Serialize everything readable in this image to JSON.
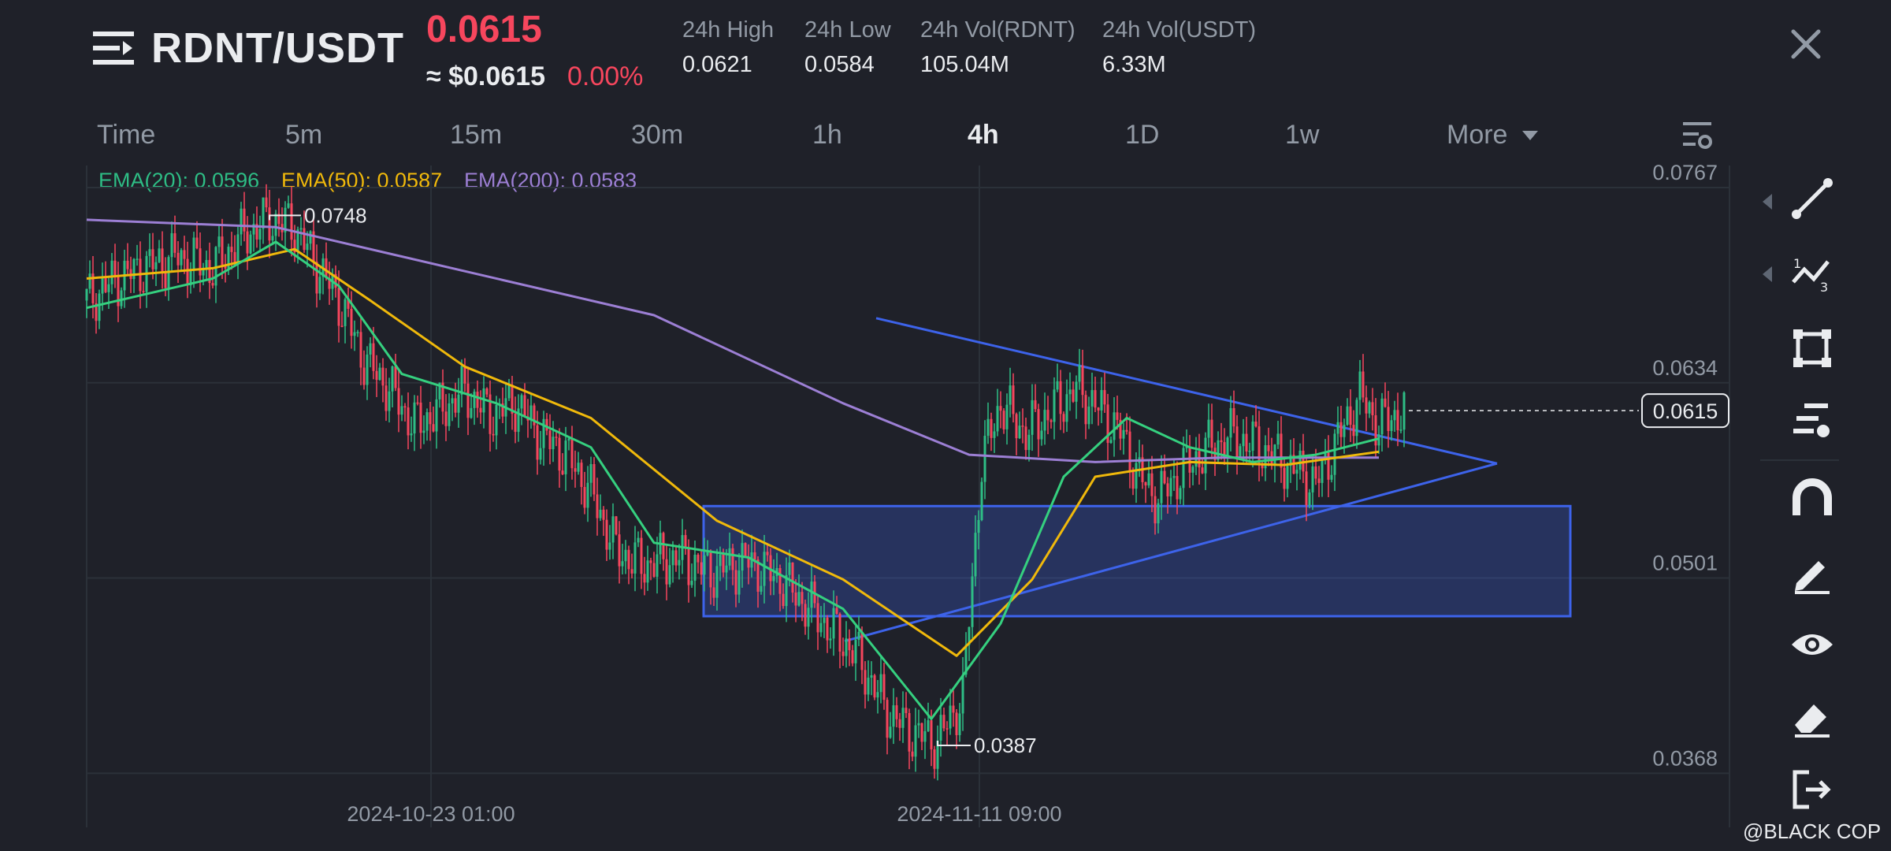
{
  "header": {
    "pair": "RDNT/USDT",
    "last_price": "0.0615",
    "usd_price": "≈ $0.0615",
    "change": "0.00%",
    "stats": [
      {
        "label": "24h High",
        "value": "0.0621"
      },
      {
        "label": "24h Low",
        "value": "0.0584"
      },
      {
        "label": "24h Vol(RDNT)",
        "value": "105.04M"
      },
      {
        "label": "24h Vol(USDT)",
        "value": "6.33M"
      }
    ]
  },
  "timeframes": [
    "Time",
    "5m",
    "15m",
    "30m",
    "1h",
    "4h",
    "1D",
    "1w",
    "More"
  ],
  "active_timeframe": "4h",
  "ema_legend": [
    {
      "label": "EMA(20): 0.0596",
      "color": "#2ebd85"
    },
    {
      "label": "EMA(50): 0.0587",
      "color": "#f0b90b"
    },
    {
      "label": "EMA(200): 0.0583",
      "color": "#9c7fd4"
    }
  ],
  "colors": {
    "up": "#2ebd85",
    "down": "#f6465d",
    "ema20": "#35d07f",
    "ema50": "#f0b90b",
    "ema200": "#9c7fd4",
    "drawing": "#3d63ea",
    "background": "#1f2129"
  },
  "chart_data": {
    "type": "candlestick",
    "price_axis_labels": [
      "0.0767",
      "0.0634",
      "0.0501",
      "0.0368"
    ],
    "time_axis_labels": [
      "2024-10-23 01:00",
      "2024-11-11 09:00"
    ],
    "current_price_label": "0.0615",
    "high_marker": "0.0748",
    "low_marker": "0.0387",
    "ylim": [
      0.0358,
      0.0782
    ],
    "close_series_path": [
      [
        0,
        0.069
      ],
      [
        10,
        0.0705
      ],
      [
        28,
        0.072
      ],
      [
        40,
        0.0712
      ],
      [
        50,
        0.0735
      ],
      [
        58,
        0.0745
      ],
      [
        66,
        0.074
      ],
      [
        72,
        0.0718
      ],
      [
        80,
        0.069
      ],
      [
        88,
        0.065
      ],
      [
        96,
        0.063
      ],
      [
        104,
        0.0605
      ],
      [
        112,
        0.0615
      ],
      [
        120,
        0.0628
      ],
      [
        128,
        0.0612
      ],
      [
        136,
        0.062
      ],
      [
        144,
        0.0598
      ],
      [
        152,
        0.0585
      ],
      [
        160,
        0.056
      ],
      [
        168,
        0.052
      ],
      [
        176,
        0.051
      ],
      [
        188,
        0.0515
      ],
      [
        198,
        0.0505
      ],
      [
        210,
        0.0512
      ],
      [
        220,
        0.05
      ],
      [
        232,
        0.0475
      ],
      [
        244,
        0.045
      ],
      [
        254,
        0.041
      ],
      [
        262,
        0.0395
      ],
      [
        270,
        0.039
      ],
      [
        278,
        0.042
      ],
      [
        284,
        0.058
      ],
      [
        290,
        0.062
      ],
      [
        298,
        0.06
      ],
      [
        306,
        0.0615
      ],
      [
        314,
        0.063
      ],
      [
        322,
        0.0615
      ],
      [
        328,
        0.06
      ],
      [
        334,
        0.057
      ],
      [
        340,
        0.0555
      ],
      [
        348,
        0.0575
      ],
      [
        356,
        0.059
      ],
      [
        364,
        0.0598
      ],
      [
        372,
        0.059
      ],
      [
        380,
        0.058
      ],
      [
        390,
        0.0565
      ],
      [
        398,
        0.06
      ],
      [
        404,
        0.0625
      ],
      [
        410,
        0.0605
      ],
      [
        418,
        0.0615
      ]
    ],
    "ema20_path": [
      [
        0,
        0.0685
      ],
      [
        40,
        0.0705
      ],
      [
        60,
        0.073
      ],
      [
        80,
        0.07
      ],
      [
        100,
        0.064
      ],
      [
        130,
        0.062
      ],
      [
        160,
        0.059
      ],
      [
        180,
        0.0525
      ],
      [
        210,
        0.0515
      ],
      [
        240,
        0.048
      ],
      [
        268,
        0.0405
      ],
      [
        290,
        0.047
      ],
      [
        310,
        0.057
      ],
      [
        330,
        0.061
      ],
      [
        350,
        0.059
      ],
      [
        370,
        0.058
      ],
      [
        390,
        0.0585
      ],
      [
        410,
        0.0596
      ]
    ],
    "ema50_path": [
      [
        0,
        0.0705
      ],
      [
        40,
        0.0712
      ],
      [
        66,
        0.0725
      ],
      [
        90,
        0.069
      ],
      [
        120,
        0.0645
      ],
      [
        160,
        0.061
      ],
      [
        200,
        0.054
      ],
      [
        240,
        0.05
      ],
      [
        276,
        0.0448
      ],
      [
        300,
        0.05
      ],
      [
        320,
        0.057
      ],
      [
        350,
        0.058
      ],
      [
        380,
        0.0578
      ],
      [
        410,
        0.0587
      ]
    ],
    "ema200_path": [
      [
        0,
        0.0745
      ],
      [
        60,
        0.074
      ],
      [
        120,
        0.071
      ],
      [
        180,
        0.068
      ],
      [
        240,
        0.062
      ],
      [
        280,
        0.0585
      ],
      [
        320,
        0.058
      ],
      [
        360,
        0.0583
      ],
      [
        410,
        0.0583
      ]
    ],
    "drawings": {
      "rectangle": {
        "x_range": [
          230,
          480
        ],
        "price_range": [
          0.0475,
          0.055
        ]
      },
      "triangle_upper": [
        [
          280,
          0.0678
        ],
        [
          480,
          0.0579
        ]
      ],
      "triangle_lower": [
        [
          280,
          0.0458
        ],
        [
          480,
          0.0579
        ]
      ]
    },
    "grid": true
  },
  "toolbar": {
    "tools": [
      "trend-line-icon",
      "fibonacci-icon",
      "shape-icon",
      "text-tool-icon",
      "magnet-icon",
      "pencil-icon",
      "eye-icon",
      "eraser-icon",
      "exit-icon"
    ]
  },
  "watermark": "@BLACK COP"
}
